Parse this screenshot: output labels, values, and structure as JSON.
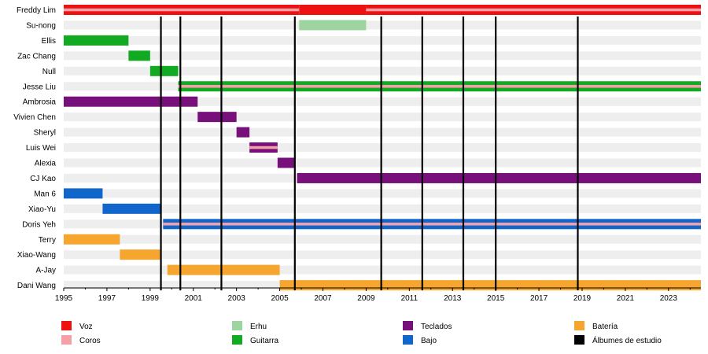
{
  "chart_data": {
    "type": "timeline",
    "x_axis": {
      "range": [
        1995,
        2024.5
      ],
      "ticks": [
        1995,
        1997,
        1999,
        2001,
        2003,
        2005,
        2007,
        2009,
        2011,
        2013,
        2015,
        2017,
        2019,
        2021,
        2023
      ],
      "tick_labels": [
        "1995",
        "1997",
        "1999",
        "2001",
        "2003",
        "2005",
        "2007",
        "2009",
        "2011",
        "2013",
        "2015",
        "2017",
        "2019",
        "2021",
        "2023"
      ]
    },
    "members": [
      {
        "name": "Freddy Lim",
        "bars": [
          {
            "role": "Voz",
            "start": 1995,
            "end": 2005.9
          },
          {
            "role": "Voz",
            "start": 2005.9,
            "end": 2009.0
          },
          {
            "role": "Voz",
            "start": 2009.0,
            "end": 2024.5
          }
        ],
        "secondary": [
          {
            "role": "Coros",
            "start": 1995,
            "end": 2005.9
          },
          {
            "role": "Coros",
            "start": 2009.0,
            "end": 2024.5
          }
        ],
        "primary_full_height": [
          1
        ]
      },
      {
        "name": "Su-nong",
        "bars": [
          {
            "role": "Erhu",
            "start": 2005.9,
            "end": 2009.0
          }
        ]
      },
      {
        "name": "Ellis",
        "bars": [
          {
            "role": "Guitarra",
            "start": 1995,
            "end": 1998.0
          }
        ]
      },
      {
        "name": "Zac Chang",
        "bars": [
          {
            "role": "Guitarra",
            "start": 1998.0,
            "end": 1999.0
          }
        ]
      },
      {
        "name": "Null",
        "bars": [
          {
            "role": "Guitarra",
            "start": 1999.0,
            "end": 2000.3
          }
        ]
      },
      {
        "name": "Jesse Liu",
        "bars": [
          {
            "role": "Guitarra",
            "start": 2000.3,
            "end": 2024.5
          }
        ],
        "secondary": [
          {
            "role": "Coros",
            "start": 2000.3,
            "end": 2024.5
          }
        ]
      },
      {
        "name": "Ambrosia",
        "bars": [
          {
            "role": "Teclados",
            "start": 1995,
            "end": 2001.2
          }
        ]
      },
      {
        "name": "Vivien Chen",
        "bars": [
          {
            "role": "Teclados",
            "start": 2001.2,
            "end": 2003.0
          }
        ]
      },
      {
        "name": "Sheryl",
        "bars": [
          {
            "role": "Teclados",
            "start": 2003.0,
            "end": 2003.6
          }
        ]
      },
      {
        "name": "Luis Wei",
        "bars": [
          {
            "role": "Teclados",
            "start": 2003.6,
            "end": 2004.9
          }
        ],
        "secondary": [
          {
            "role": "Coros",
            "start": 2003.6,
            "end": 2004.9
          }
        ]
      },
      {
        "name": "Alexia",
        "bars": [
          {
            "role": "Teclados",
            "start": 2004.9,
            "end": 2005.7
          }
        ]
      },
      {
        "name": "CJ Kao",
        "bars": [
          {
            "role": "Teclados",
            "start": 2005.8,
            "end": 2024.5
          }
        ]
      },
      {
        "name": "Man 6",
        "bars": [
          {
            "role": "Bajo",
            "start": 1995,
            "end": 1996.8
          }
        ]
      },
      {
        "name": "Xiao-Yu",
        "bars": [
          {
            "role": "Bajo",
            "start": 1996.8,
            "end": 1999.5
          }
        ]
      },
      {
        "name": "Doris Yeh",
        "bars": [
          {
            "role": "Bajo",
            "start": 1999.6,
            "end": 2024.5
          }
        ],
        "secondary": [
          {
            "role": "Coros",
            "start": 1999.6,
            "end": 2024.5
          }
        ]
      },
      {
        "name": "Terry",
        "bars": [
          {
            "role": "Batería",
            "start": 1995,
            "end": 1997.6
          }
        ]
      },
      {
        "name": "Xiao-Wang",
        "bars": [
          {
            "role": "Batería",
            "start": 1997.6,
            "end": 1999.5
          }
        ]
      },
      {
        "name": "A-Jay",
        "bars": [
          {
            "role": "Batería",
            "start": 1999.8,
            "end": 2005.0
          }
        ]
      },
      {
        "name": "Dani Wang",
        "bars": [
          {
            "role": "Batería",
            "start": 2005.0,
            "end": 2024.5
          }
        ]
      }
    ],
    "album_lines": [
      1999.5,
      2000.4,
      2002.3,
      2005.7,
      2009.7,
      2011.6,
      2013.5,
      2015.0,
      2018.8
    ],
    "legend": [
      {
        "key": "voz",
        "label": "Voz",
        "color": "#ee1111"
      },
      {
        "key": "coros",
        "label": "Coros",
        "color": "#f4a0a8"
      },
      {
        "key": "erhu",
        "label": "Erhu",
        "color": "#9ed4a0"
      },
      {
        "key": "guitarra",
        "label": "Guitarra",
        "color": "#11aa22"
      },
      {
        "key": "teclados",
        "label": "Teclados",
        "color": "#77107a"
      },
      {
        "key": "bajo",
        "label": "Bajo",
        "color": "#1166cc"
      },
      {
        "key": "bateria",
        "label": "Batería",
        "color": "#f6a52e"
      },
      {
        "key": "albumes",
        "label": "Álbumes de estudio",
        "color": "#000000"
      }
    ],
    "legend_placement": "bottom",
    "grid": false
  },
  "role_colors": {
    "Voz": "#ee1111",
    "Coros": "#f4a0a8",
    "Erhu": "#9ed4a0",
    "Guitarra": "#11aa22",
    "Teclados": "#77107a",
    "Bajo": "#1166cc",
    "Batería": "#f6a52e"
  },
  "row_stripe_color": "#eeeeee"
}
